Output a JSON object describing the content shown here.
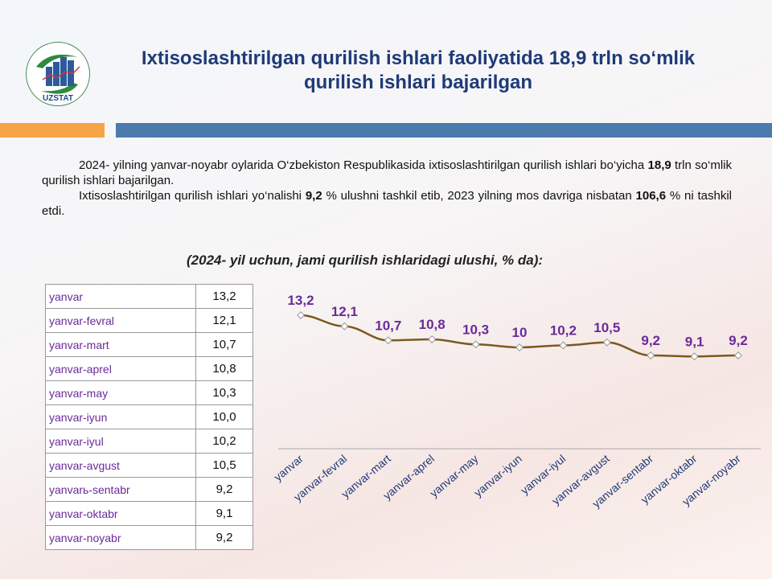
{
  "logo": {
    "text": "UZSTAT"
  },
  "title": "Ixtisoslashtirilgan qurilish ishlari faoliyatida 18,9 trln so‘mlik qurilish ishlari bajarilgan",
  "paragraph1": {
    "a": "2024- yilning yanvar-noyabr oylarida O‘zbekiston Respublikasida ixtisoslashtirilgan qurilish ishlari bo‘yicha ",
    "b": "18,9",
    "c": " trln so‘mlik qurilish ishlari bajarilgan."
  },
  "paragraph2": {
    "a": "Ixtisoslashtirilgan qurilish ishlari yo‘nalishi ",
    "b": "9,2",
    "c": " % ulushni tashkil etib, 2023 yilning mos davriga nisbatan ",
    "d": "106,6",
    "e": " % ni tashkil etdi."
  },
  "table": {
    "rows": [
      [
        "yanvar",
        "13,2"
      ],
      [
        "yanvar-fevral",
        "12,1"
      ],
      [
        "yanvar-mart",
        "10,7"
      ],
      [
        "yanvar-aprel",
        "10,8"
      ],
      [
        "yanvar-may",
        "10,3"
      ],
      [
        "yanvar-iyun",
        "10,0"
      ],
      [
        "yanvar-iyul",
        "10,2"
      ],
      [
        "yanvar-avgust",
        "10,5"
      ],
      [
        "yanvarь-sentabr",
        "9,2"
      ],
      [
        "yanvar-oktabr",
        "9,1"
      ],
      [
        "yanvar-noyabr",
        "9,2"
      ]
    ]
  },
  "chart_data": {
    "type": "line",
    "title": "(2024- yil  uchun, jami qurilish ishlaridagi ulushi, % da):",
    "categories": [
      "yanvar",
      "yanvar-fevral",
      "yanvar-mart",
      "yanvar-aprel",
      "yanvar-may",
      "yanvar-iyun",
      "yanvar-iyul",
      "yanvar-avgust",
      "yanvar-sentabr",
      "yanvar-oktabr",
      "yanvar-noyabr"
    ],
    "values": [
      13.2,
      12.1,
      10.7,
      10.8,
      10.3,
      10,
      10.2,
      10.5,
      9.2,
      9.1,
      9.2
    ],
    "labels": [
      "13,2",
      "12,1",
      "10,7",
      "10,8",
      "10,3",
      "10",
      "10,2",
      "10,5",
      "9,2",
      "9,1",
      "9,2"
    ],
    "ylim": [
      0,
      14.5
    ],
    "grid": false,
    "line_color": "#7a5a1e",
    "label_color": "#6a2a9a"
  }
}
